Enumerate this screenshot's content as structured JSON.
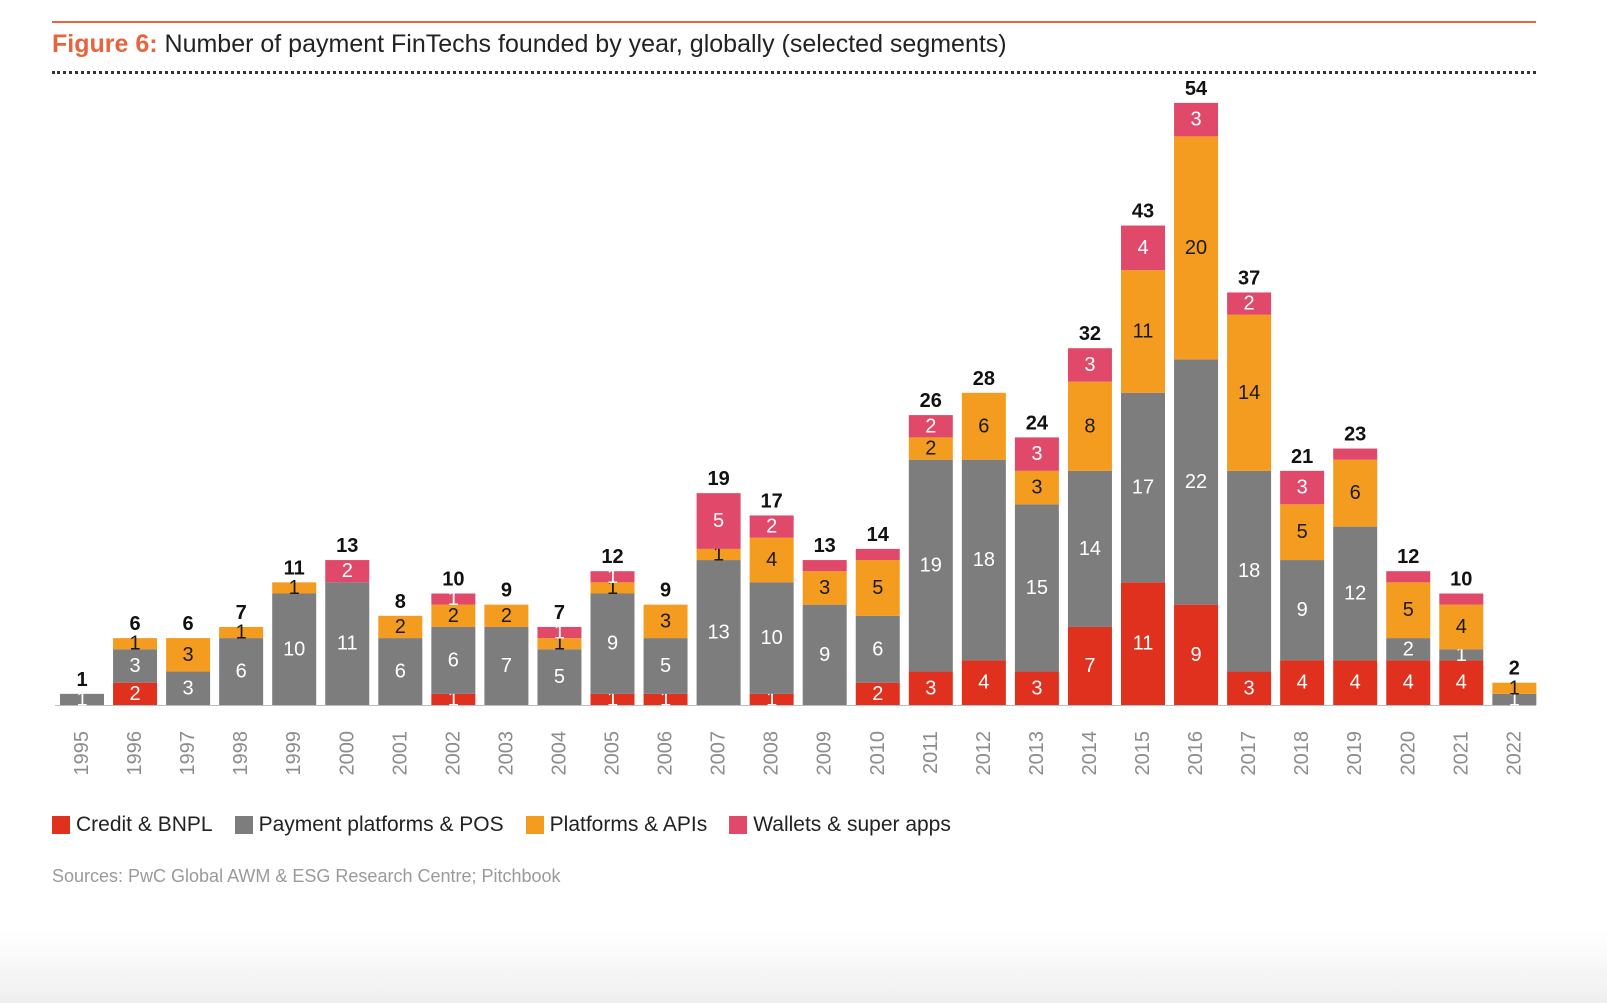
{
  "figure": {
    "number_label": "Figure 6:",
    "title_text": " Number of payment FinTechs founded by year, globally (selected segments)"
  },
  "source": "Sources: PwC Global AWM & ESG Research Centre; Pitchbook",
  "chart_data": {
    "type": "bar",
    "stacked": true,
    "title": "Number of payment FinTechs founded by year, globally (selected segments)",
    "categories": [
      "1995",
      "1996",
      "1997",
      "1998",
      "1999",
      "2000",
      "2001",
      "2002",
      "2003",
      "2004",
      "2005",
      "2006",
      "2007",
      "2008",
      "2009",
      "2010",
      "2011",
      "2012",
      "2013",
      "2014",
      "2015",
      "2016",
      "2017",
      "2018",
      "2019",
      "2020",
      "2021",
      "2022"
    ],
    "series": [
      {
        "name": "Credit & BNPL",
        "color": "#e0301e",
        "values": [
          0,
          2,
          0,
          0,
          0,
          0,
          0,
          1,
          0,
          0,
          1,
          1,
          0,
          1,
          0,
          2,
          3,
          4,
          3,
          7,
          11,
          9,
          3,
          4,
          4,
          4,
          4,
          0
        ]
      },
      {
        "name": "Payment platforms & POS",
        "color": "#7d7d7d",
        "values": [
          1,
          3,
          3,
          6,
          10,
          11,
          6,
          6,
          7,
          5,
          9,
          5,
          13,
          10,
          9,
          6,
          19,
          18,
          15,
          14,
          17,
          22,
          18,
          9,
          12,
          2,
          1,
          1
        ]
      },
      {
        "name": "Platforms & APIs",
        "color": "#f39c1f",
        "values": [
          0,
          1,
          3,
          1,
          1,
          0,
          2,
          2,
          2,
          1,
          1,
          3,
          1,
          4,
          3,
          5,
          2,
          6,
          3,
          8,
          11,
          20,
          14,
          5,
          6,
          5,
          4,
          1
        ]
      },
      {
        "name": "Wallets & super apps",
        "color": "#e0496a",
        "values": [
          0,
          0,
          0,
          0,
          0,
          2,
          0,
          1,
          0,
          1,
          1,
          0,
          5,
          2,
          1,
          1,
          2,
          0,
          3,
          3,
          4,
          3,
          2,
          3,
          1,
          1,
          1,
          0
        ]
      }
    ],
    "totals": [
      1,
      6,
      6,
      7,
      11,
      13,
      8,
      10,
      9,
      7,
      12,
      9,
      19,
      17,
      13,
      14,
      26,
      28,
      24,
      32,
      43,
      54,
      37,
      21,
      23,
      12,
      10,
      2
    ],
    "hidden_value_labels": {
      "Wallets & super apps": [
        "2009",
        "2010",
        "2019",
        "2020",
        "2021"
      ]
    },
    "ylim": [
      0,
      54
    ],
    "xlabel": "",
    "ylabel": "",
    "grid": false,
    "legend_position": "bottom-left"
  }
}
